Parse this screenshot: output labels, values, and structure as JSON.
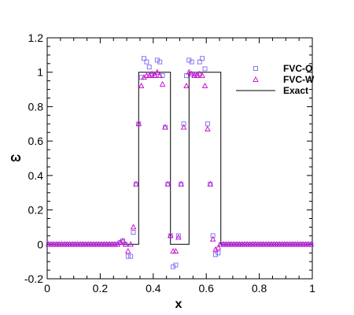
{
  "chart_data": {
    "type": "scatter",
    "xlabel": "x",
    "ylabel": "ω",
    "xlim": [
      0,
      1
    ],
    "ylim": [
      -0.2,
      1.2
    ],
    "xticks": [
      0,
      0.2,
      0.4,
      0.6,
      0.8,
      1
    ],
    "xtick_labels": [
      "0",
      "0.2",
      "0.4",
      "0.6",
      "0.8",
      "1"
    ],
    "yticks": [
      -0.2,
      0,
      0.2,
      0.4,
      0.6,
      0.8,
      1,
      1.2
    ],
    "ytick_labels": [
      "-0.2",
      "0",
      "0.2",
      "0.4",
      "0.6",
      "0.8",
      "1",
      "1.2"
    ],
    "grid": false,
    "legend_position": "top-right",
    "series": [
      {
        "name": "FVC-O",
        "marker": "square",
        "color": "#7b68ee",
        "x": [
          0.005,
          0.015,
          0.025,
          0.035,
          0.045,
          0.055,
          0.065,
          0.075,
          0.085,
          0.095,
          0.105,
          0.115,
          0.125,
          0.135,
          0.145,
          0.155,
          0.165,
          0.175,
          0.185,
          0.195,
          0.205,
          0.215,
          0.225,
          0.235,
          0.245,
          0.255,
          0.265,
          0.275,
          0.285,
          0.295,
          0.305,
          0.315,
          0.325,
          0.335,
          0.345,
          0.355,
          0.365,
          0.375,
          0.385,
          0.395,
          0.405,
          0.415,
          0.425,
          0.435,
          0.445,
          0.455,
          0.465,
          0.475,
          0.485,
          0.495,
          0.505,
          0.515,
          0.525,
          0.535,
          0.545,
          0.555,
          0.565,
          0.575,
          0.585,
          0.595,
          0.605,
          0.615,
          0.625,
          0.635,
          0.645,
          0.655,
          0.665,
          0.675,
          0.685,
          0.695,
          0.705,
          0.715,
          0.725,
          0.735,
          0.745,
          0.755,
          0.765,
          0.775,
          0.785,
          0.795,
          0.805,
          0.815,
          0.825,
          0.835,
          0.845,
          0.855,
          0.865,
          0.875,
          0.885,
          0.895,
          0.905,
          0.915,
          0.925,
          0.935,
          0.945,
          0.955,
          0.965,
          0.975,
          0.985,
          0.995
        ],
        "y": [
          0,
          0,
          0,
          0,
          0,
          0,
          0,
          0,
          0,
          0,
          0,
          0,
          0,
          0,
          0,
          0,
          0,
          0,
          0,
          0,
          0,
          0,
          0,
          0,
          0,
          0,
          0,
          0.01,
          0.02,
          0,
          -0.07,
          -0.07,
          0.07,
          0.35,
          0.7,
          0.97,
          1.08,
          1.06,
          1.03,
          0.98,
          0.98,
          1.07,
          1.06,
          0.98,
          0.68,
          0.35,
          0.05,
          -0.13,
          -0.12,
          0.05,
          0.35,
          0.7,
          0.98,
          1.07,
          1.06,
          0.99,
          0.98,
          1.06,
          1.08,
          1.02,
          0.7,
          0.35,
          0.05,
          -0.06,
          -0.05,
          0,
          0,
          0,
          0,
          0,
          0,
          0,
          0,
          0,
          0,
          0,
          0,
          0,
          0,
          0,
          0,
          0,
          0,
          0,
          0,
          0,
          0,
          0,
          0,
          0,
          0,
          0,
          0,
          0,
          0,
          0,
          0,
          0,
          0,
          0
        ]
      },
      {
        "name": "FVC-W",
        "marker": "triangle",
        "color": "#cc00cc",
        "x": [
          0.005,
          0.015,
          0.025,
          0.035,
          0.045,
          0.055,
          0.065,
          0.075,
          0.085,
          0.095,
          0.105,
          0.115,
          0.125,
          0.135,
          0.145,
          0.155,
          0.165,
          0.175,
          0.185,
          0.195,
          0.205,
          0.215,
          0.225,
          0.235,
          0.245,
          0.255,
          0.265,
          0.275,
          0.285,
          0.295,
          0.305,
          0.315,
          0.325,
          0.335,
          0.345,
          0.355,
          0.365,
          0.375,
          0.385,
          0.395,
          0.405,
          0.415,
          0.425,
          0.435,
          0.445,
          0.455,
          0.465,
          0.475,
          0.485,
          0.495,
          0.505,
          0.515,
          0.525,
          0.535,
          0.545,
          0.555,
          0.565,
          0.575,
          0.585,
          0.595,
          0.605,
          0.615,
          0.625,
          0.635,
          0.645,
          0.655,
          0.665,
          0.675,
          0.685,
          0.695,
          0.705,
          0.715,
          0.725,
          0.735,
          0.745,
          0.755,
          0.765,
          0.775,
          0.785,
          0.795,
          0.805,
          0.815,
          0.825,
          0.835,
          0.845,
          0.855,
          0.865,
          0.875,
          0.885,
          0.895,
          0.905,
          0.915,
          0.925,
          0.935,
          0.945,
          0.955,
          0.965,
          0.975,
          0.985,
          0.995
        ],
        "y": [
          0,
          0,
          0,
          0,
          0,
          0,
          0,
          0,
          0,
          0,
          0,
          0,
          0,
          0,
          0,
          0,
          0,
          0,
          0,
          0,
          0,
          0,
          0,
          0,
          0,
          0,
          0,
          0.01,
          0.02,
          0,
          -0.04,
          0,
          0.1,
          0.35,
          0.7,
          0.92,
          0.97,
          0.98,
          0.98,
          0.99,
          0.98,
          1.0,
          0.98,
          0.93,
          0.68,
          0.35,
          0.05,
          -0.04,
          -0.04,
          0.04,
          0.35,
          0.68,
          0.92,
          1.0,
          0.99,
          0.98,
          0.98,
          0.99,
          0.98,
          0.92,
          0.67,
          0.35,
          0.03,
          -0.03,
          -0.02,
          0,
          0,
          0,
          0,
          0,
          0,
          0,
          0,
          0,
          0,
          0,
          0,
          0,
          0,
          0,
          0,
          0,
          0,
          0,
          0,
          0,
          0,
          0,
          0,
          0,
          0,
          0,
          0,
          0,
          0,
          0,
          0,
          0,
          0,
          0
        ]
      },
      {
        "name": "Exact",
        "marker": "line",
        "color": "#000000",
        "x": [
          0,
          0.345,
          0.345,
          0.465,
          0.465,
          0.535,
          0.535,
          0.655,
          0.655,
          1
        ],
        "y": [
          0,
          0,
          1,
          1,
          0,
          0,
          1,
          1,
          0,
          0
        ]
      }
    ]
  }
}
